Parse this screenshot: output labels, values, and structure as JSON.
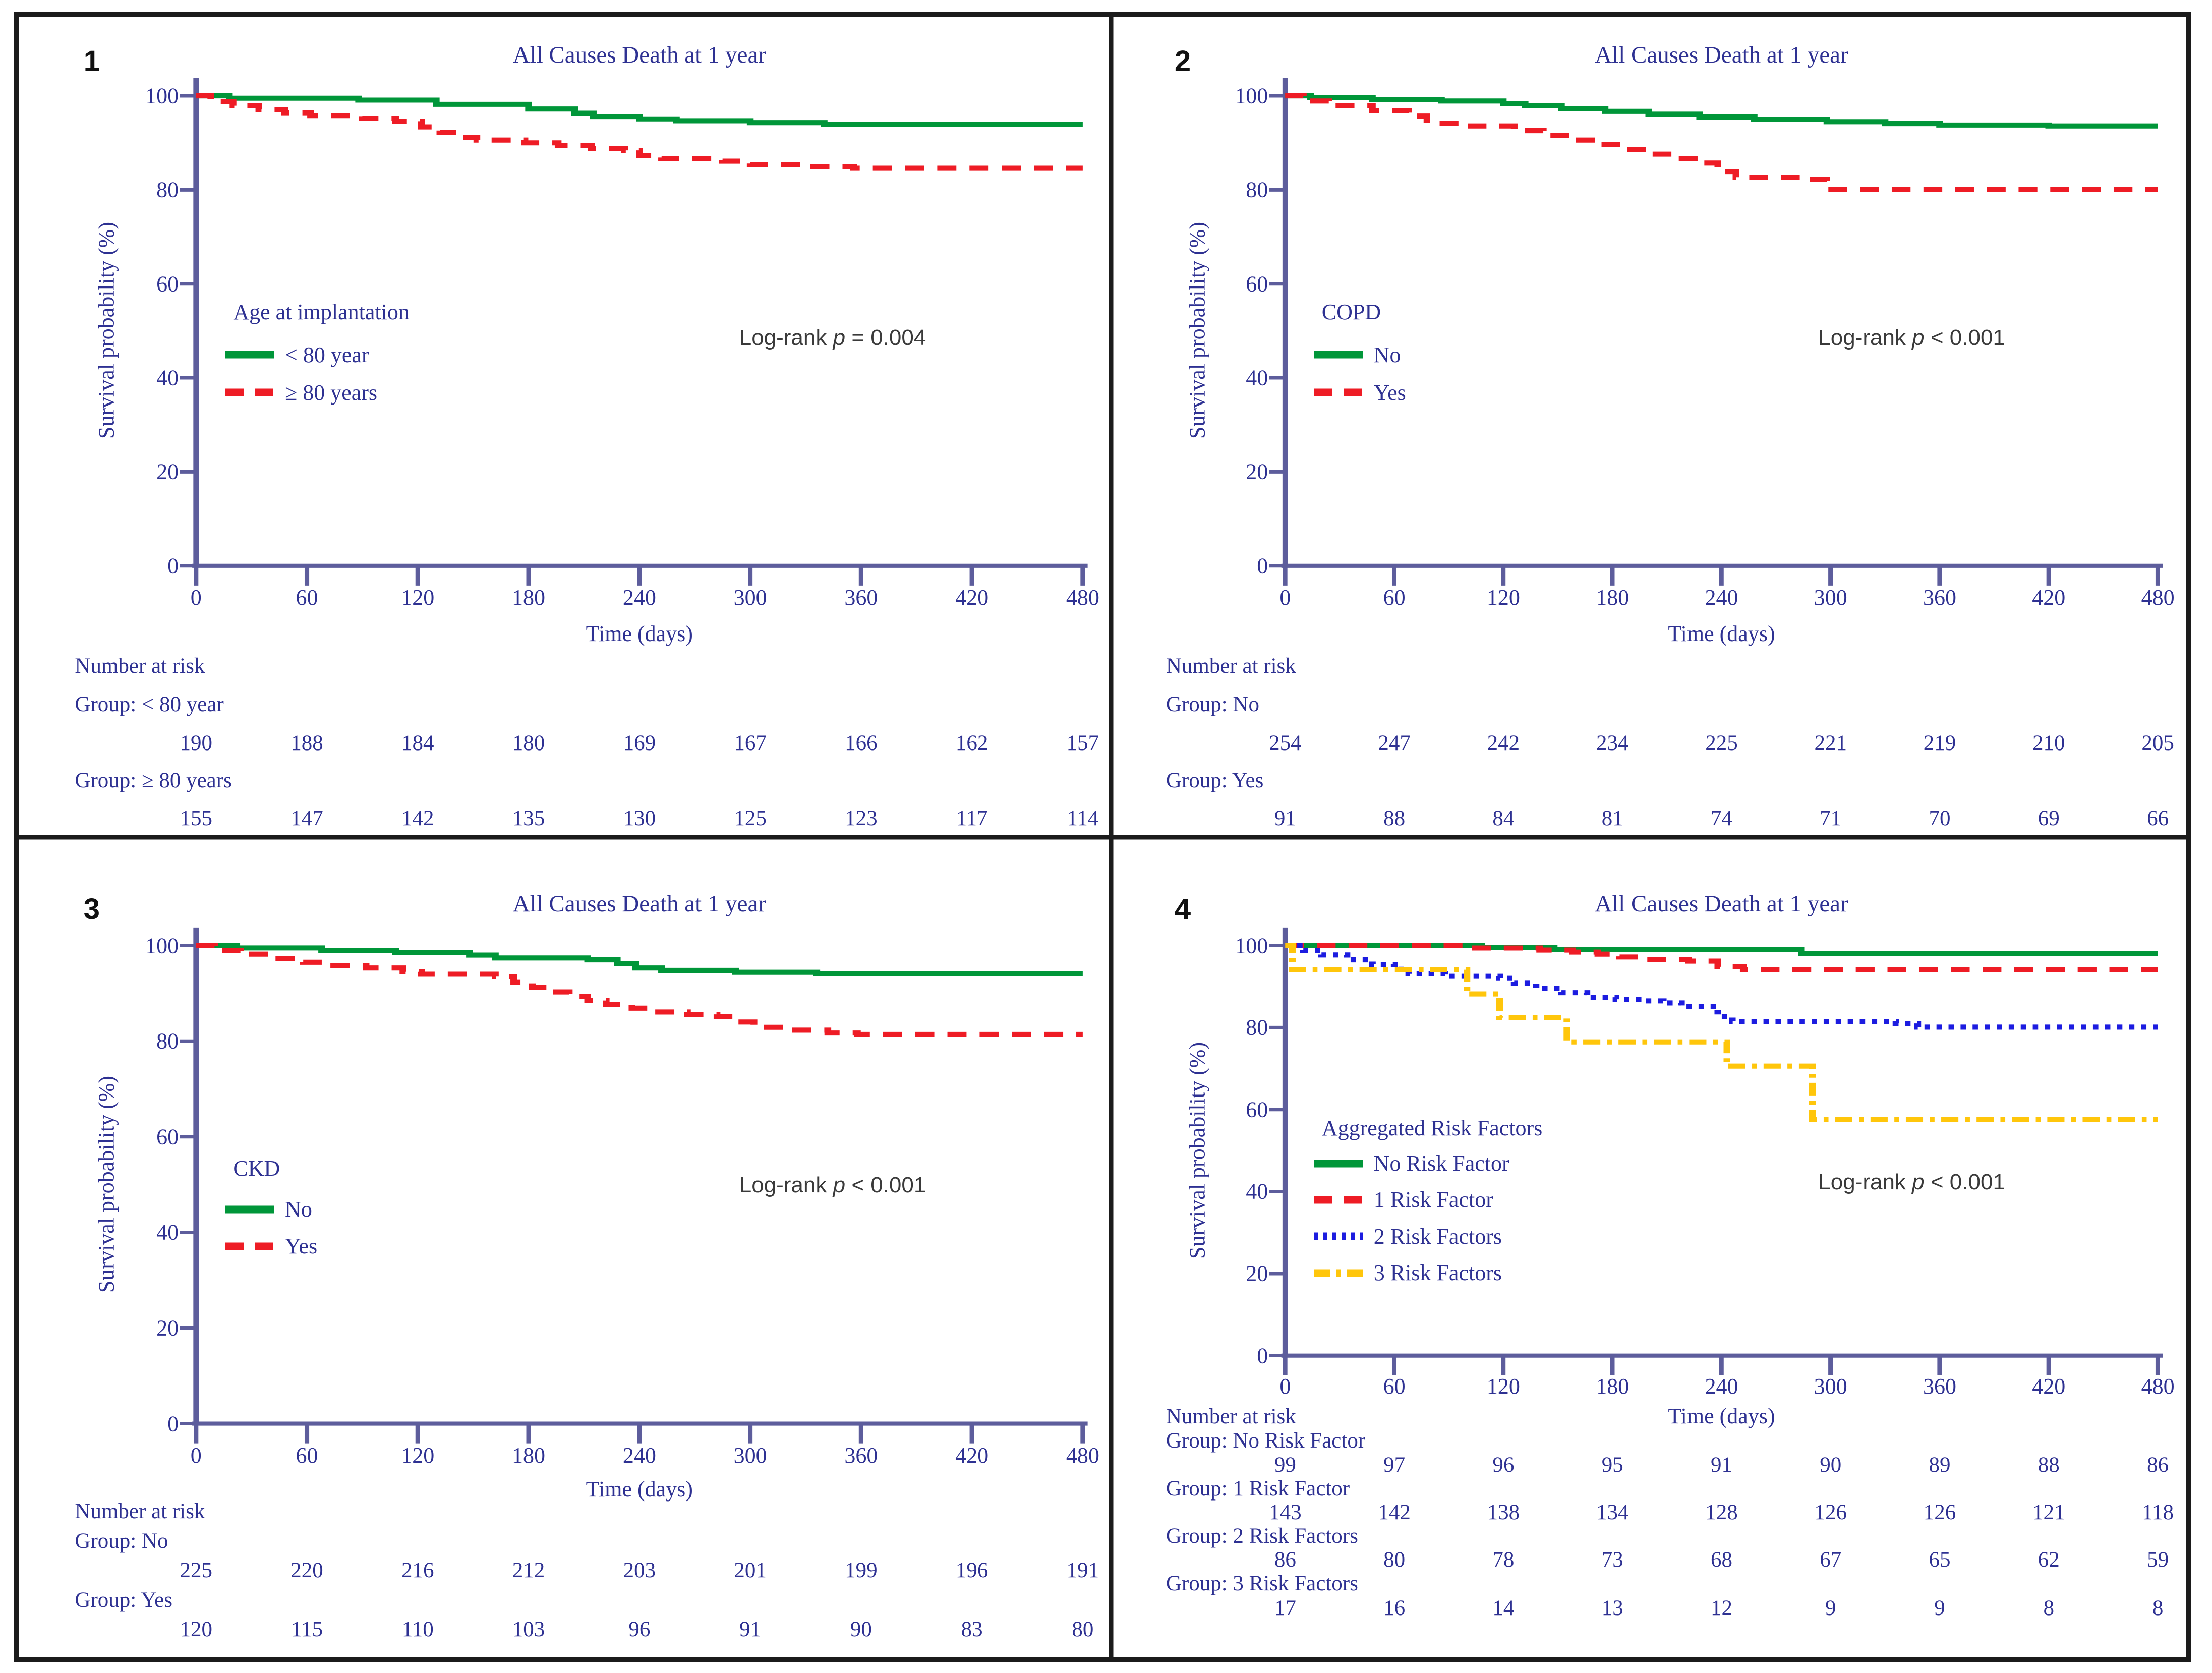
{
  "colors": {
    "text_blue": "#2e3192",
    "axis": "#5d5d9c",
    "green": "#009639",
    "red": "#ee1c25",
    "blue": "#1c1ce0",
    "yellow": "#ffc60b",
    "annotation_gray": "#3a3a3a",
    "border_black": "#1b1b1b"
  },
  "chart_data": [
    {
      "type": "line",
      "panel_number": "1",
      "title": "All Causes Death at 1 year",
      "xlabel": "Time (days)",
      "ylabel": "Survival probability (%)",
      "xlim": [
        0,
        480
      ],
      "ylim": [
        0,
        100
      ],
      "x_ticks": [
        0,
        60,
        120,
        180,
        240,
        300,
        360,
        420,
        480
      ],
      "y_ticks": [
        0,
        20,
        40,
        60,
        80,
        100
      ],
      "grid": false,
      "legend_position": "inside-left",
      "legend_title": "Age at implantation",
      "annotation": {
        "prefix": "Log-rank ",
        "p": "p",
        "suffix": " = 0.004"
      },
      "series": [
        {
          "name": "< 80 year",
          "color": "#009639",
          "dash": "solid",
          "step_points": [
            [
              0,
              100
            ],
            [
              18,
              99.5
            ],
            [
              88,
              99.1
            ],
            [
              130,
              98.2
            ],
            [
              180,
              97.2
            ],
            [
              205,
              96.3
            ],
            [
              215,
              95.6
            ],
            [
              240,
              95.1
            ],
            [
              260,
              94.7
            ],
            [
              300,
              94.3
            ],
            [
              340,
              94
            ],
            [
              480,
              94
            ]
          ]
        },
        {
          "name": "≥ 80 years",
          "color": "#ee1c25",
          "dash": "dashed",
          "step_points": [
            [
              0,
              100
            ],
            [
              8,
              98.8
            ],
            [
              20,
              97.9
            ],
            [
              34,
              97.1
            ],
            [
              48,
              96.4
            ],
            [
              62,
              95.8
            ],
            [
              90,
              95.2
            ],
            [
              108,
              94.6
            ],
            [
              122,
              93.4
            ],
            [
              132,
              92.2
            ],
            [
              142,
              91.2
            ],
            [
              152,
              90.6
            ],
            [
              178,
              90
            ],
            [
              196,
              89.4
            ],
            [
              214,
              88.8
            ],
            [
              232,
              88.4
            ],
            [
              240,
              87.3
            ],
            [
              252,
              86.6
            ],
            [
              285,
              86.1
            ],
            [
              300,
              85.4
            ],
            [
              330,
              84.9
            ],
            [
              356,
              84.6
            ],
            [
              480,
              84.6
            ]
          ]
        }
      ],
      "number_at_risk": {
        "heading": "Number at risk",
        "groups": [
          {
            "label": "Group: < 80 year",
            "counts": [
              "190",
              "188",
              "184",
              "180",
              "169",
              "167",
              "166",
              "162",
              "157"
            ]
          },
          {
            "label": "Group: ≥ 80 years",
            "counts": [
              "155",
              "147",
              "142",
              "135",
              "130",
              "125",
              "123",
              "117",
              "114"
            ]
          }
        ]
      }
    },
    {
      "type": "line",
      "panel_number": "2",
      "title": "All Causes Death at 1 year",
      "xlabel": "Time (days)",
      "ylabel": "Survival probability (%)",
      "xlim": [
        0,
        480
      ],
      "ylim": [
        0,
        100
      ],
      "x_ticks": [
        0,
        60,
        120,
        180,
        240,
        300,
        360,
        420,
        480
      ],
      "y_ticks": [
        0,
        20,
        40,
        60,
        80,
        100
      ],
      "grid": false,
      "legend_position": "inside-left",
      "legend_title": "COPD",
      "annotation": {
        "prefix": "Log-rank ",
        "p": "p",
        "suffix": " < 0.001"
      },
      "series": [
        {
          "name": "No",
          "color": "#009639",
          "dash": "solid",
          "step_points": [
            [
              0,
              100
            ],
            [
              14,
              99.6
            ],
            [
              48,
              99.2
            ],
            [
              86,
              98.9
            ],
            [
              120,
              98.4
            ],
            [
              132,
              97.9
            ],
            [
              152,
              97.3
            ],
            [
              176,
              96.7
            ],
            [
              200,
              96.1
            ],
            [
              228,
              95.5
            ],
            [
              258,
              95
            ],
            [
              298,
              94.5
            ],
            [
              330,
              94.1
            ],
            [
              360,
              93.8
            ],
            [
              420,
              93.6
            ],
            [
              480,
              93.6
            ]
          ]
        },
        {
          "name": "Yes",
          "color": "#ee1c25",
          "dash": "dashed",
          "step_points": [
            [
              0,
              100
            ],
            [
              10,
              98.9
            ],
            [
              24,
              97.9
            ],
            [
              48,
              96.8
            ],
            [
              68,
              95.7
            ],
            [
              78,
              94.2
            ],
            [
              98,
              93.6
            ],
            [
              126,
              92.6
            ],
            [
              142,
              91.6
            ],
            [
              158,
              90.6
            ],
            [
              172,
              89.6
            ],
            [
              188,
              88.6
            ],
            [
              200,
              87.6
            ],
            [
              214,
              86.7
            ],
            [
              228,
              85.7
            ],
            [
              238,
              83.9
            ],
            [
              248,
              82.7
            ],
            [
              288,
              82.2
            ],
            [
              298,
              80.1
            ],
            [
              480,
              80.1
            ]
          ]
        }
      ],
      "number_at_risk": {
        "heading": "Number at risk",
        "groups": [
          {
            "label": "Group: No",
            "counts": [
              "254",
              "247",
              "242",
              "234",
              "225",
              "221",
              "219",
              "210",
              "205"
            ]
          },
          {
            "label": "Group: Yes",
            "counts": [
              "91",
              "88",
              "84",
              "81",
              "74",
              "71",
              "70",
              "69",
              "66"
            ]
          }
        ]
      }
    },
    {
      "type": "line",
      "panel_number": "3",
      "title": "All Causes Death at 1 year",
      "xlabel": "Time (days)",
      "ylabel": "Survival probability (%)",
      "xlim": [
        0,
        480
      ],
      "ylim": [
        0,
        100
      ],
      "x_ticks": [
        0,
        60,
        120,
        180,
        240,
        300,
        360,
        420,
        480
      ],
      "y_ticks": [
        0,
        20,
        40,
        60,
        80,
        100
      ],
      "grid": false,
      "legend_position": "inside-left",
      "legend_title": "CKD",
      "annotation": {
        "prefix": "Log-rank ",
        "p": "p",
        "suffix": " < 0.001"
      },
      "series": [
        {
          "name": "No",
          "color": "#009639",
          "dash": "solid",
          "step_points": [
            [
              0,
              100
            ],
            [
              22,
              99.5
            ],
            [
              68,
              99
            ],
            [
              108,
              98.5
            ],
            [
              148,
              98
            ],
            [
              162,
              97.4
            ],
            [
              212,
              97
            ],
            [
              228,
              96.2
            ],
            [
              238,
              95.3
            ],
            [
              252,
              94.8
            ],
            [
              292,
              94.4
            ],
            [
              336,
              94.1
            ],
            [
              480,
              94.1
            ]
          ]
        },
        {
          "name": "Yes",
          "color": "#ee1c25",
          "dash": "dashed",
          "step_points": [
            [
              0,
              100
            ],
            [
              10,
              99
            ],
            [
              24,
              98.2
            ],
            [
              42,
              97.3
            ],
            [
              58,
              96.5
            ],
            [
              72,
              95.8
            ],
            [
              92,
              95.3
            ],
            [
              112,
              94.5
            ],
            [
              122,
              94
            ],
            [
              162,
              93.5
            ],
            [
              172,
              92.3
            ],
            [
              182,
              91.3
            ],
            [
              192,
              90.3
            ],
            [
              202,
              89.4
            ],
            [
              212,
              88.5
            ],
            [
              222,
              87.7
            ],
            [
              236,
              86.9
            ],
            [
              248,
              86.1
            ],
            [
              266,
              85.6
            ],
            [
              282,
              85.1
            ],
            [
              292,
              84
            ],
            [
              302,
              82.9
            ],
            [
              318,
              82.3
            ],
            [
              342,
              81.7
            ],
            [
              358,
              81.4
            ],
            [
              480,
              81.4
            ]
          ]
        }
      ],
      "number_at_risk": {
        "heading": "Number at risk",
        "groups": [
          {
            "label": "Group: No",
            "counts": [
              "225",
              "220",
              "216",
              "212",
              "203",
              "201",
              "199",
              "196",
              "191"
            ]
          },
          {
            "label": "Group: Yes",
            "counts": [
              "120",
              "115",
              "110",
              "103",
              "96",
              "91",
              "90",
              "83",
              "80"
            ]
          }
        ]
      }
    },
    {
      "type": "line",
      "panel_number": "4",
      "title": "All Causes Death at 1 year",
      "xlabel": "Time (days)",
      "ylabel": "Survival probability (%)",
      "xlim": [
        0,
        480
      ],
      "ylim": [
        0,
        100
      ],
      "x_ticks": [
        0,
        60,
        120,
        180,
        240,
        300,
        360,
        420,
        480
      ],
      "y_ticks": [
        0,
        20,
        40,
        60,
        80,
        100
      ],
      "grid": false,
      "legend_position": "inside-left",
      "legend_title": "Aggregated Risk Factors",
      "annotation": {
        "prefix": "Log-rank ",
        "p": "p",
        "suffix": " < 0.001"
      },
      "series": [
        {
          "name": "No Risk Factor",
          "color": "#009639",
          "dash": "solid",
          "step_points": [
            [
              0,
              100
            ],
            [
              108,
              99.5
            ],
            [
              148,
              99
            ],
            [
              284,
              98
            ],
            [
              480,
              98
            ]
          ]
        },
        {
          "name": "1 Risk Factor",
          "color": "#ee1c25",
          "dash": "dashed",
          "step_points": [
            [
              0,
              100
            ],
            [
              102,
              99.4
            ],
            [
              140,
              98.9
            ],
            [
              158,
              98.4
            ],
            [
              172,
              97.9
            ],
            [
              184,
              97.2
            ],
            [
              198,
              96.6
            ],
            [
              222,
              96.2
            ],
            [
              238,
              94.8
            ],
            [
              252,
              94.1
            ],
            [
              480,
              94.1
            ]
          ]
        },
        {
          "name": "2 Risk Factors",
          "color": "#1c1ce0",
          "dash": "dotted",
          "step_points": [
            [
              0,
              100
            ],
            [
              10,
              98.8
            ],
            [
              20,
              97.7
            ],
            [
              34,
              96.5
            ],
            [
              48,
              95.4
            ],
            [
              60,
              94.2
            ],
            [
              68,
              93.1
            ],
            [
              88,
              92.5
            ],
            [
              118,
              92
            ],
            [
              126,
              90.8
            ],
            [
              138,
              89.6
            ],
            [
              152,
              88.5
            ],
            [
              166,
              87.4
            ],
            [
              182,
              86.9
            ],
            [
              198,
              86.5
            ],
            [
              208,
              86
            ],
            [
              218,
              85.1
            ],
            [
              238,
              82.7
            ],
            [
              246,
              81.5
            ],
            [
              336,
              81
            ],
            [
              348,
              80.1
            ],
            [
              480,
              80.1
            ]
          ]
        },
        {
          "name": "3 Risk Factors",
          "color": "#ffc60b",
          "dash": "dashdot",
          "step_points": [
            [
              0,
              100
            ],
            [
              4,
              94.1
            ],
            [
              100,
              88.2
            ],
            [
              118,
              82.4
            ],
            [
              155,
              76.5
            ],
            [
              243,
              70.6
            ],
            [
              290,
              57.6
            ],
            [
              480,
              57.6
            ]
          ]
        }
      ],
      "number_at_risk": {
        "heading": "Number at risk",
        "groups": [
          {
            "label": "Group: No Risk Factor",
            "counts": [
              "99",
              "97",
              "96",
              "95",
              "91",
              "90",
              "89",
              "88",
              "86"
            ]
          },
          {
            "label": "Group: 1 Risk Factor",
            "counts": [
              "143",
              "142",
              "138",
              "134",
              "128",
              "126",
              "126",
              "121",
              "118"
            ]
          },
          {
            "label": "Group: 2 Risk Factors",
            "counts": [
              "86",
              "80",
              "78",
              "73",
              "68",
              "67",
              "65",
              "62",
              "59"
            ]
          },
          {
            "label": "Group: 3 Risk Factors",
            "counts": [
              "17",
              "16",
              "14",
              "13",
              "12",
              "9",
              "9",
              "8",
              "8"
            ]
          }
        ]
      }
    }
  ]
}
